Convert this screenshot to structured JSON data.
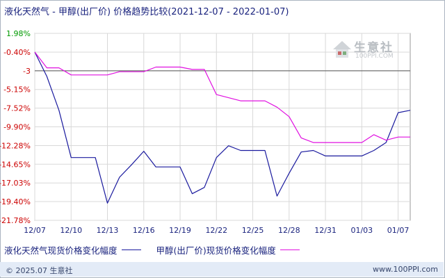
{
  "title": "液化天然气 - 甲醇(出厂价) 价格趋势比较(2021-12-07 - 2022-01-07)",
  "watermark": {
    "text": "生意社",
    "url": "100PPI.COM",
    "icon": "house-logo-icon"
  },
  "footer": {
    "copyright": "© 2025.07 生意社",
    "url": "www.100PPI.com"
  },
  "colors": {
    "lng": "#1a1a9e",
    "methanol": "#e010e0",
    "grid": "#d8d8d8",
    "zero_line": "#555555",
    "negative_tick": "#cc0000",
    "positive_tick": "#009900"
  },
  "chart_data": {
    "type": "line",
    "title": "液化天然气 - 甲醇(出厂价) 价格趋势比较(2021-12-07 - 2022-01-07)",
    "xlabel": "",
    "ylabel": "",
    "y_ticks": [
      "1.98%",
      "-0.40%",
      "-3",
      "-5.15%",
      "-7.52%",
      "-9.90%",
      "-12.28%",
      "-14.65%",
      "-17.03%",
      "-19.40%",
      "-21.78%"
    ],
    "y_tick_values": [
      1.98,
      -0.4,
      -2.775,
      -5.15,
      -7.52,
      -9.9,
      -12.28,
      -14.65,
      -17.03,
      -19.4,
      -21.78
    ],
    "ylim": [
      -21.78,
      1.98
    ],
    "x_ticks": [
      "12/07",
      "12/10",
      "12/13",
      "12/16",
      "12/19",
      "12/22",
      "12/25",
      "12/28",
      "12/31",
      "01/03",
      "01/07"
    ],
    "x_tick_positions": [
      "2021-12-07",
      "2021-12-10",
      "2021-12-13",
      "2021-12-16",
      "2021-12-19",
      "2021-12-22",
      "2021-12-25",
      "2021-12-28",
      "2021-12-31",
      "2022-01-03",
      "2022-01-06"
    ],
    "x_range": [
      "2021-12-07",
      "2022-01-07"
    ],
    "reference_line": -2.775,
    "grid": true,
    "legend_position": "bottom-left",
    "x": [
      "2021-12-07",
      "2021-12-08",
      "2021-12-09",
      "2021-12-10",
      "2021-12-11",
      "2021-12-12",
      "2021-12-13",
      "2021-12-14",
      "2021-12-15",
      "2021-12-16",
      "2021-12-17",
      "2021-12-18",
      "2021-12-19",
      "2021-12-20",
      "2021-12-21",
      "2021-12-22",
      "2021-12-23",
      "2021-12-24",
      "2021-12-25",
      "2021-12-26",
      "2021-12-27",
      "2021-12-28",
      "2021-12-29",
      "2021-12-30",
      "2021-12-31",
      "2022-01-01",
      "2022-01-02",
      "2022-01-03",
      "2022-01-04",
      "2022-01-05",
      "2022-01-06",
      "2022-01-07"
    ],
    "series": [
      {
        "name": "液化天然气现货价格变化幅度",
        "color": "#1a1a9e",
        "values": [
          -0.4,
          -3.5,
          -7.8,
          -13.8,
          -13.8,
          -13.8,
          -19.6,
          -16.3,
          -14.7,
          -13.0,
          -15.0,
          -15.0,
          -15.0,
          -18.4,
          -17.6,
          -13.8,
          -12.3,
          -12.9,
          -12.9,
          -12.9,
          -18.7,
          -15.8,
          -13.1,
          -12.9,
          -13.6,
          -13.6,
          -13.6,
          -13.6,
          -12.9,
          -11.9,
          -8.1,
          -7.8
        ]
      },
      {
        "name": "甲醇(出厂价)现货价格变化幅度",
        "color": "#e010e0",
        "values": [
          -0.4,
          -2.4,
          -2.4,
          -3.3,
          -3.3,
          -3.3,
          -3.3,
          -2.9,
          -2.9,
          -2.9,
          -2.3,
          -2.3,
          -2.3,
          -2.6,
          -2.6,
          -5.8,
          -6.2,
          -6.6,
          -6.6,
          -6.6,
          -7.4,
          -8.6,
          -11.3,
          -11.9,
          -11.9,
          -11.9,
          -11.9,
          -11.9,
          -10.9,
          -11.6,
          -11.2,
          -11.2
        ]
      }
    ]
  }
}
